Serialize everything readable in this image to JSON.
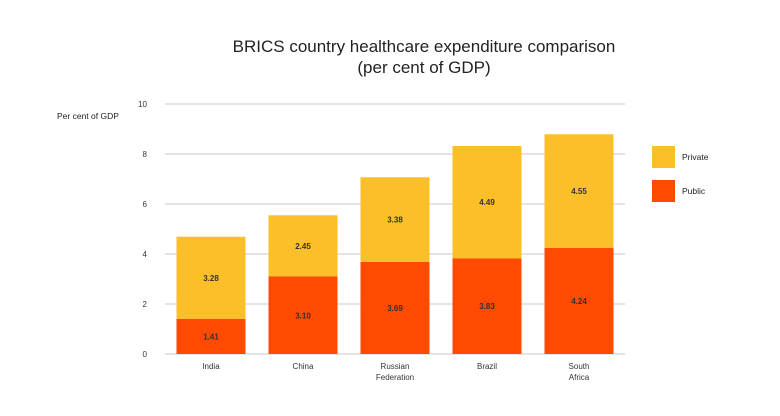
{
  "chart_data": {
    "type": "bar",
    "stacked": true,
    "title": "BRICS country healthcare expenditure comparison",
    "subtitle": "(per cent of GDP)",
    "ylabel": "Per cent of GDP",
    "xlabel": "",
    "ylim": [
      0,
      10
    ],
    "yticks": [
      "0",
      "2",
      "4",
      "6",
      "8",
      "10"
    ],
    "grid": true,
    "legend_position": "right",
    "categories": [
      [
        "India"
      ],
      [
        "China"
      ],
      [
        "Russian",
        "Federation"
      ],
      [
        "Brazil"
      ],
      [
        "South",
        "Africa"
      ]
    ],
    "series": [
      {
        "name": "Public",
        "color": "#FF4A00",
        "values": [
          1.41,
          3.1,
          3.69,
          3.83,
          4.24
        ],
        "labels": [
          "1.41",
          "3.10",
          "3.69",
          "3.83",
          "4.24"
        ]
      },
      {
        "name": "Private",
        "color": "#FBBF2A",
        "values": [
          3.28,
          2.45,
          3.38,
          4.49,
          4.55
        ],
        "labels": [
          "3.28",
          "2.45",
          "3.38",
          "4.49",
          "4.55"
        ]
      }
    ]
  }
}
